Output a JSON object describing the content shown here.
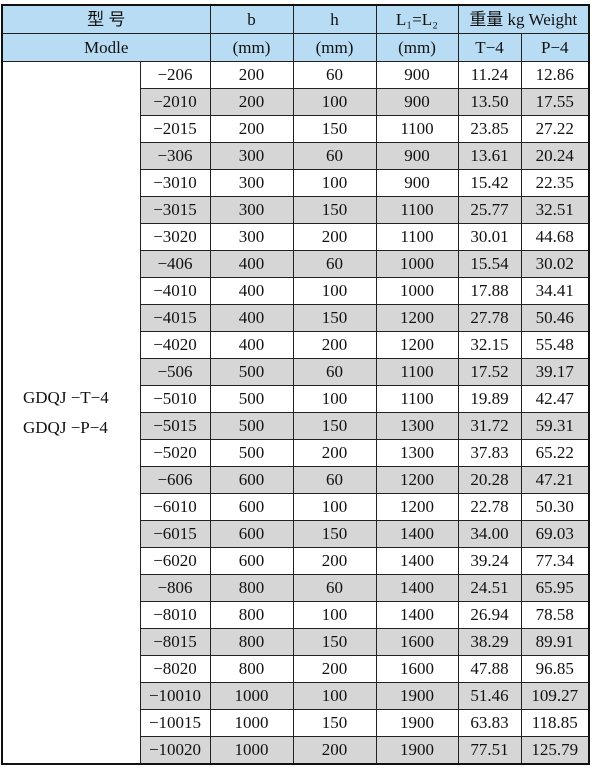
{
  "header": {
    "model_cn": "型  号",
    "model_en": "Modle",
    "b_label": "b",
    "b_unit": "(mm)",
    "h_label": "h",
    "h_unit": "(mm)",
    "l_label": "L₁=L₂",
    "l_unit": "(mm)",
    "weight_label": "重量 kg Weight",
    "t4_label": "T−4",
    "p4_label": "P−4"
  },
  "model_names": [
    "GDQJ −T−4",
    "GDQJ −P−4"
  ],
  "colors": {
    "header_bg": "#b8dcf3",
    "shade_bg": "#d6d6d6"
  },
  "rows": [
    [
      "−206",
      "200",
      "60",
      "900",
      "11.24",
      "12.86"
    ],
    [
      "−2010",
      "200",
      "100",
      "900",
      "13.50",
      "17.55"
    ],
    [
      "−2015",
      "200",
      "150",
      "1100",
      "23.85",
      "27.22"
    ],
    [
      "−306",
      "300",
      "60",
      "900",
      "13.61",
      "20.24"
    ],
    [
      "−3010",
      "300",
      "100",
      "900",
      "15.42",
      "22.35"
    ],
    [
      "−3015",
      "300",
      "150",
      "1100",
      "25.77",
      "32.51"
    ],
    [
      "−3020",
      "300",
      "200",
      "1100",
      "30.01",
      "44.68"
    ],
    [
      "−406",
      "400",
      "60",
      "1000",
      "15.54",
      "30.02"
    ],
    [
      "−4010",
      "400",
      "100",
      "1000",
      "17.88",
      "34.41"
    ],
    [
      "−4015",
      "400",
      "150",
      "1200",
      "27.78",
      "50.46"
    ],
    [
      "−4020",
      "400",
      "200",
      "1200",
      "32.15",
      "55.48"
    ],
    [
      "−506",
      "500",
      "60",
      "1100",
      "17.52",
      "39.17"
    ],
    [
      "−5010",
      "500",
      "100",
      "1100",
      "19.89",
      "42.47"
    ],
    [
      "−5015",
      "500",
      "150",
      "1300",
      "31.72",
      "59.31"
    ],
    [
      "−5020",
      "500",
      "200",
      "1300",
      "37.83",
      "65.22"
    ],
    [
      "−606",
      "600",
      "60",
      "1200",
      "20.28",
      "47.21"
    ],
    [
      "−6010",
      "600",
      "100",
      "1200",
      "22.78",
      "50.30"
    ],
    [
      "−6015",
      "600",
      "150",
      "1400",
      "34.00",
      "69.03"
    ],
    [
      "−6020",
      "600",
      "200",
      "1400",
      "39.24",
      "77.34"
    ],
    [
      "−806",
      "800",
      "60",
      "1400",
      "24.51",
      "65.95"
    ],
    [
      "−8010",
      "800",
      "100",
      "1400",
      "26.94",
      "78.58"
    ],
    [
      "−8015",
      "800",
      "150",
      "1600",
      "38.29",
      "89.91"
    ],
    [
      "−8020",
      "800",
      "200",
      "1600",
      "47.88",
      "96.85"
    ],
    [
      "−10010",
      "1000",
      "100",
      "1900",
      "51.46",
      "109.27"
    ],
    [
      "−10015",
      "1000",
      "150",
      "1900",
      "63.83",
      "118.85"
    ],
    [
      "−10020",
      "1000",
      "200",
      "1900",
      "77.51",
      "125.79"
    ]
  ]
}
